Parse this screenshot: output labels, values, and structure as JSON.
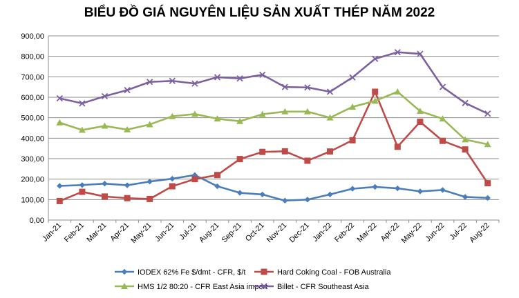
{
  "chart_data": {
    "type": "line",
    "title": "BIỂU ĐỒ GIÁ NGUYÊN LIỆU SẢN XUẤT THÉP NĂM 2022",
    "xlabel": "",
    "ylabel": "",
    "ylim": [
      0,
      900
    ],
    "y_ticks": [
      "0,00",
      "100,00",
      "200,00",
      "300,00",
      "400,00",
      "500,00",
      "600,00",
      "700,00",
      "800,00",
      "900,00"
    ],
    "grid": true,
    "legend_position": "bottom",
    "categories": [
      "Jan-21",
      "Feb-21",
      "Mar-21",
      "Apr-21",
      "May-21",
      "Jun-21",
      "Jul-21",
      "Aug-21",
      "Sep-21",
      "Oct-21",
      "Nov-21",
      "Dec-21",
      "Jan-22",
      "Feb-22",
      "Mar-22",
      "Apr-22",
      "May-22",
      "Jun-22",
      "Jul-22",
      "Aug-22"
    ],
    "series": [
      {
        "name": "IODEX 62% Fe $/dmt - CFR, $/t",
        "color": "#4a7ebb",
        "marker": "diamond",
        "values": [
          167,
          171,
          178,
          170,
          188,
          202,
          220,
          165,
          133,
          125,
          95,
          100,
          125,
          153,
          162,
          155,
          140,
          147,
          113,
          108
        ]
      },
      {
        "name": "Hard Coking Coal - FOB Australia",
        "color": "#be4b48",
        "marker": "square",
        "values": [
          93,
          138,
          115,
          107,
          103,
          165,
          200,
          220,
          298,
          333,
          336,
          290,
          335,
          390,
          627,
          358,
          480,
          387,
          345,
          180
        ]
      },
      {
        "name": "HMS 1/2 80:20 - CFR East Asia import",
        "color": "#98b954",
        "marker": "triangle",
        "values": [
          476,
          440,
          460,
          442,
          467,
          507,
          518,
          495,
          483,
          517,
          530,
          530,
          500,
          553,
          582,
          627,
          532,
          495,
          393,
          370
        ]
      },
      {
        "name": "Billet - CFR Southeast Asia",
        "color": "#7d60a0",
        "marker": "x",
        "values": [
          595,
          570,
          605,
          635,
          675,
          680,
          667,
          698,
          692,
          710,
          650,
          648,
          627,
          697,
          788,
          820,
          812,
          650,
          572,
          520
        ]
      }
    ]
  }
}
